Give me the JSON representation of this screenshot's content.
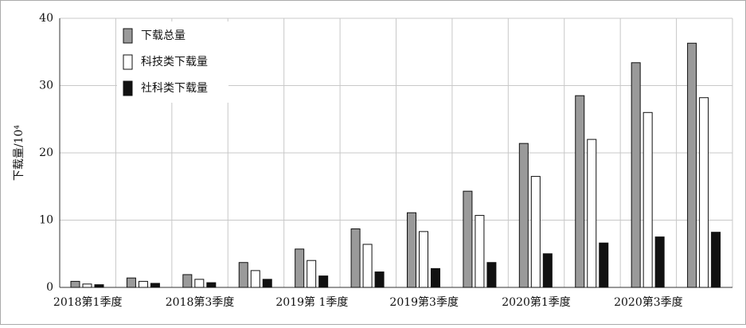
{
  "chart_data": {
    "type": "bar",
    "y_label": "下载量/10⁴",
    "categories": [
      "2018第1季度",
      null,
      "2018第3季度",
      null,
      "2019第 1季度",
      null,
      "2019第3季度",
      null,
      "2020第1季度",
      null,
      "2020第3季度",
      null
    ],
    "series": [
      {
        "name": "下载总量",
        "color": "#9a9a9a",
        "values": [
          0.9,
          1.4,
          1.9,
          3.7,
          5.7,
          8.7,
          11.1,
          14.3,
          21.4,
          28.5,
          33.4,
          36.3
        ]
      },
      {
        "name": "科技类下载量",
        "color": "#ffffff",
        "values": [
          0.5,
          0.9,
          1.2,
          2.5,
          4.0,
          6.4,
          8.3,
          10.7,
          16.5,
          22.0,
          26.0,
          28.2
        ]
      },
      {
        "name": "社科类下载量",
        "color": "#111111",
        "values": [
          0.4,
          0.6,
          0.7,
          1.2,
          1.7,
          2.3,
          2.8,
          3.7,
          5.0,
          6.6,
          7.5,
          8.2
        ]
      }
    ],
    "ylim": [
      0,
      40
    ],
    "yticks": [
      0,
      10,
      20,
      30,
      40
    ],
    "grid": true,
    "legend": "upper left"
  }
}
